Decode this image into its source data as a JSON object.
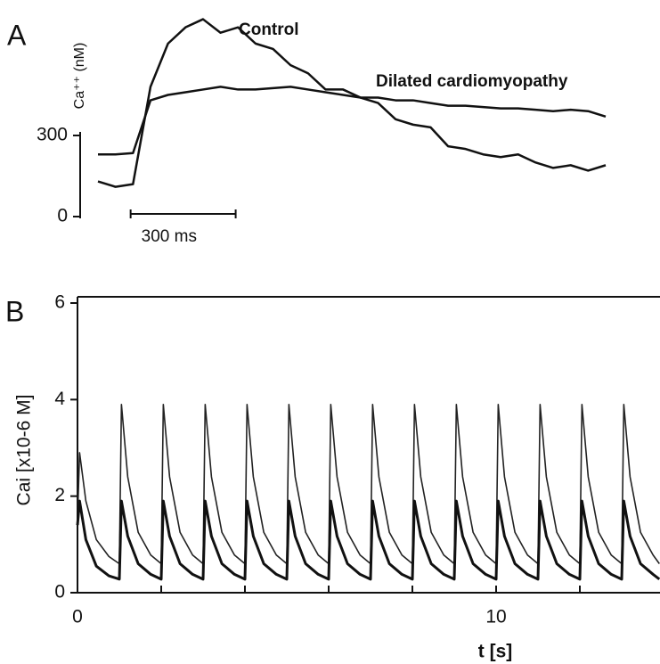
{
  "chart_data": [
    {
      "type": "line",
      "panel": "A",
      "y_label": "Ca⁺⁺ (nM)",
      "x": [
        0,
        50,
        100,
        150,
        200,
        250,
        300,
        350,
        400,
        450,
        500,
        550,
        600,
        650,
        700,
        750,
        800,
        850,
        900,
        950,
        1000,
        1050,
        1100,
        1150,
        1200,
        1250,
        1300,
        1350,
        1400,
        1450
      ],
      "xlim": [
        0,
        1450
      ],
      "ylim": [
        0,
        750
      ],
      "yticks": [
        0,
        300
      ],
      "scale_bar": {
        "value": 300,
        "label": "300 ms"
      },
      "series": [
        {
          "name": "Control",
          "color": "#111111",
          "values": [
            130,
            110,
            120,
            480,
            640,
            700,
            730,
            680,
            700,
            640,
            620,
            560,
            530,
            470,
            470,
            440,
            420,
            360,
            340,
            330,
            260,
            250,
            230,
            220,
            230,
            200,
            180,
            190,
            170,
            190
          ]
        },
        {
          "name": "Dilated cardiomyopathy",
          "color": "#111111",
          "values": [
            230,
            230,
            235,
            430,
            450,
            460,
            470,
            480,
            470,
            470,
            475,
            480,
            470,
            460,
            450,
            440,
            440,
            430,
            430,
            420,
            410,
            410,
            405,
            400,
            400,
            395,
            390,
            395,
            390,
            370
          ]
        }
      ]
    },
    {
      "type": "line",
      "panel": "B",
      "x_label": "t [s]",
      "y_label": "Cai [x10-6 M]",
      "x": [
        0,
        0.05,
        0.2,
        0.45,
        0.75,
        1,
        1.05,
        1.2,
        1.45,
        1.75,
        2,
        2.05,
        2.2,
        2.45,
        2.75,
        3,
        3.05,
        3.2,
        3.45,
        3.75,
        4,
        4.05,
        4.2,
        4.45,
        4.75,
        5,
        5.05,
        5.2,
        5.45,
        5.75,
        6,
        6.05,
        6.2,
        6.45,
        6.75,
        7,
        7.05,
        7.2,
        7.45,
        7.75,
        8,
        8.05,
        8.2,
        8.45,
        8.75,
        9,
        9.05,
        9.2,
        9.45,
        9.75,
        10,
        10.05,
        10.2,
        10.45,
        10.75,
        11,
        11.05,
        11.2,
        11.45,
        11.75,
        12,
        12.05,
        12.2,
        12.45,
        12.75,
        13,
        13.05,
        13.2,
        13.45,
        13.75,
        13.9
      ],
      "xlim": [
        0,
        13.9
      ],
      "xticks": [
        0,
        10
      ],
      "x_minor_ticks": [
        2,
        4,
        6,
        8,
        12
      ],
      "ylim": [
        0,
        6
      ],
      "yticks": [
        0,
        2,
        4,
        6
      ],
      "series": [
        {
          "color": "#222222",
          "values": [
            1.5,
            2.9,
            1.9,
            1.1,
            0.75,
            0.6,
            3.9,
            2.4,
            1.25,
            0.78,
            0.6,
            3.9,
            2.4,
            1.25,
            0.78,
            0.6,
            3.9,
            2.4,
            1.25,
            0.78,
            0.6,
            3.9,
            2.4,
            1.25,
            0.78,
            0.6,
            3.9,
            2.4,
            1.25,
            0.78,
            0.6,
            3.9,
            2.4,
            1.25,
            0.78,
            0.6,
            3.9,
            2.4,
            1.25,
            0.78,
            0.6,
            3.9,
            2.4,
            1.25,
            0.78,
            0.6,
            3.9,
            2.4,
            1.25,
            0.78,
            0.6,
            3.9,
            2.4,
            1.25,
            0.78,
            0.6,
            3.9,
            2.4,
            1.25,
            0.78,
            0.6,
            3.9,
            2.4,
            1.25,
            0.78,
            0.6,
            3.9,
            2.4,
            1.25,
            0.78,
            0.6
          ]
        },
        {
          "color": "#111111",
          "values": [
            1.4,
            1.9,
            1.1,
            0.55,
            0.35,
            0.28,
            1.9,
            1.17,
            0.6,
            0.38,
            0.28,
            1.9,
            1.17,
            0.6,
            0.38,
            0.28,
            1.9,
            1.17,
            0.6,
            0.38,
            0.28,
            1.9,
            1.17,
            0.6,
            0.38,
            0.28,
            1.9,
            1.17,
            0.6,
            0.38,
            0.28,
            1.9,
            1.17,
            0.6,
            0.38,
            0.28,
            1.9,
            1.17,
            0.6,
            0.38,
            0.28,
            1.9,
            1.17,
            0.6,
            0.38,
            0.28,
            1.9,
            1.17,
            0.6,
            0.38,
            0.28,
            1.9,
            1.17,
            0.6,
            0.38,
            0.28,
            1.9,
            1.17,
            0.6,
            0.38,
            0.28,
            1.9,
            1.17,
            0.6,
            0.38,
            0.28,
            1.9,
            1.17,
            0.6,
            0.38,
            0.28
          ]
        }
      ]
    }
  ]
}
